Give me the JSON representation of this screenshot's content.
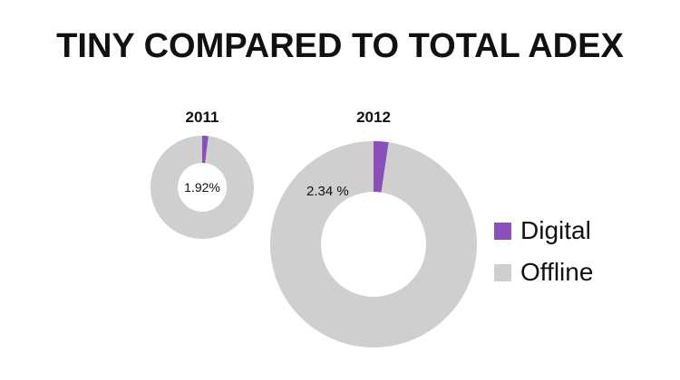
{
  "chart_data": {
    "type": "pie",
    "title": "TINY COMPARED TO TOTAL ADEX",
    "categories": [
      "Digital",
      "Offline"
    ],
    "colors": {
      "Digital": "#8a4fb8",
      "Offline": "#cfcfcf"
    },
    "legend_position": "right",
    "charts": [
      {
        "label": "2011",
        "digital_label": "1.92%",
        "values": [
          1.92,
          98.08
        ]
      },
      {
        "label": "2012",
        "digital_label": "2.34 %",
        "values": [
          2.34,
          97.66
        ]
      }
    ]
  }
}
